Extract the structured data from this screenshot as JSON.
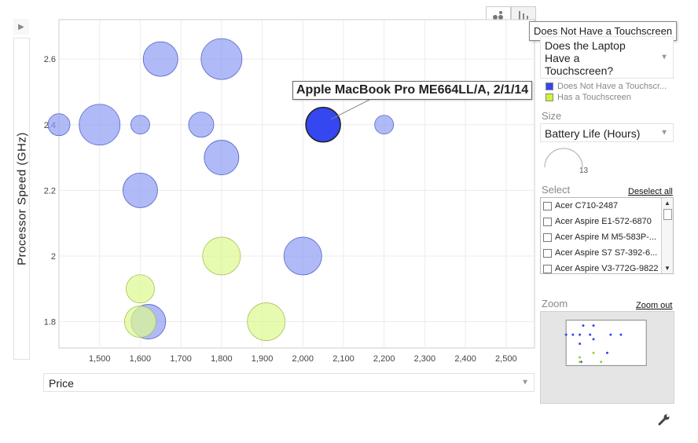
{
  "chart_data": {
    "type": "scatter",
    "x_axis": {
      "min": 1400,
      "max": 2570,
      "ticks": [
        1500,
        1600,
        1700,
        1800,
        1900,
        2000,
        2100,
        2200,
        2300,
        2400,
        2500
      ],
      "tick_labels": [
        "1,500",
        "1,600",
        "1,700",
        "1,800",
        "1,900",
        "2,000",
        "2,100",
        "2,200",
        "2,300",
        "2,400",
        "2,500"
      ]
    },
    "y_axis": {
      "min": 1.72,
      "max": 2.72,
      "ticks": [
        1.8,
        2.0,
        2.2,
        2.4,
        2.6
      ],
      "tick_labels": [
        "1.8",
        "2",
        "2.2",
        "2.4",
        "2.6"
      ]
    },
    "ylabel": "Processor Speed (GHz)",
    "grid": true,
    "series": [
      {
        "name": "Does Not Have a Touchscreen",
        "color": "#8f9cf3",
        "points": [
          {
            "x": 1400,
            "y": 2.4,
            "size": 5
          },
          {
            "x": 1500,
            "y": 2.4,
            "size": 11
          },
          {
            "x": 1600,
            "y": 2.4,
            "size": 4
          },
          {
            "x": 1650,
            "y": 2.6,
            "size": 9
          },
          {
            "x": 1750,
            "y": 2.4,
            "size": 6
          },
          {
            "x": 1800,
            "y": 2.6,
            "size": 11
          },
          {
            "x": 1800,
            "y": 2.3,
            "size": 9
          },
          {
            "x": 1600,
            "y": 2.2,
            "size": 9
          },
          {
            "x": 2000,
            "y": 2.0,
            "size": 10
          },
          {
            "x": 2200,
            "y": 2.4,
            "size": 4
          },
          {
            "x": 1620,
            "y": 1.8,
            "size": 9
          },
          {
            "x": 2050,
            "y": 2.4,
            "size": 9
          }
        ]
      },
      {
        "name": "Has a Touchscreen",
        "color": "#ddf98f",
        "points": [
          {
            "x": 1800,
            "y": 2.0,
            "size": 10
          },
          {
            "x": 1600,
            "y": 1.9,
            "size": 7
          },
          {
            "x": 1600,
            "y": 1.8,
            "size": 8
          },
          {
            "x": 1910,
            "y": 1.8,
            "size": 10
          }
        ]
      }
    ],
    "highlight": {
      "series": 0,
      "point": 11,
      "label": "Apple MacBook Pro ME664LL/A, 2/1/14",
      "color": "#3447f0"
    },
    "size_legend_max": "13"
  },
  "tooltip": "Does Not Have a Touchscreen",
  "x_selector": {
    "label": "Price"
  },
  "color_selector": {
    "label": "Does the Laptop Have a Touchscreen?"
  },
  "legend": [
    {
      "label": "Does Not Have a Touchscr...",
      "color": "#3447f0"
    },
    {
      "label": "Has a Touchscreen",
      "color": "#ccf533"
    }
  ],
  "size_section": {
    "title": "Size",
    "selected": "Battery Life (Hours)",
    "max_label": "13"
  },
  "select_section": {
    "title": "Select",
    "deselect_label": "Deselect all",
    "items": [
      "Acer  C710-2487",
      "Acer Aspire E1-572-6870",
      "Acer Aspire M M5-583P-...",
      "Acer Aspire S7 S7-392-6...",
      "Acer Aspire V3-772G-9822"
    ]
  },
  "zoom_section": {
    "title": "Zoom",
    "zoom_out_label": "Zoom out"
  },
  "play_icon": "play-icon",
  "view_icons": [
    "bubble-chart-icon",
    "bar-chart-icon"
  ],
  "settings_icon": "wrench-icon"
}
